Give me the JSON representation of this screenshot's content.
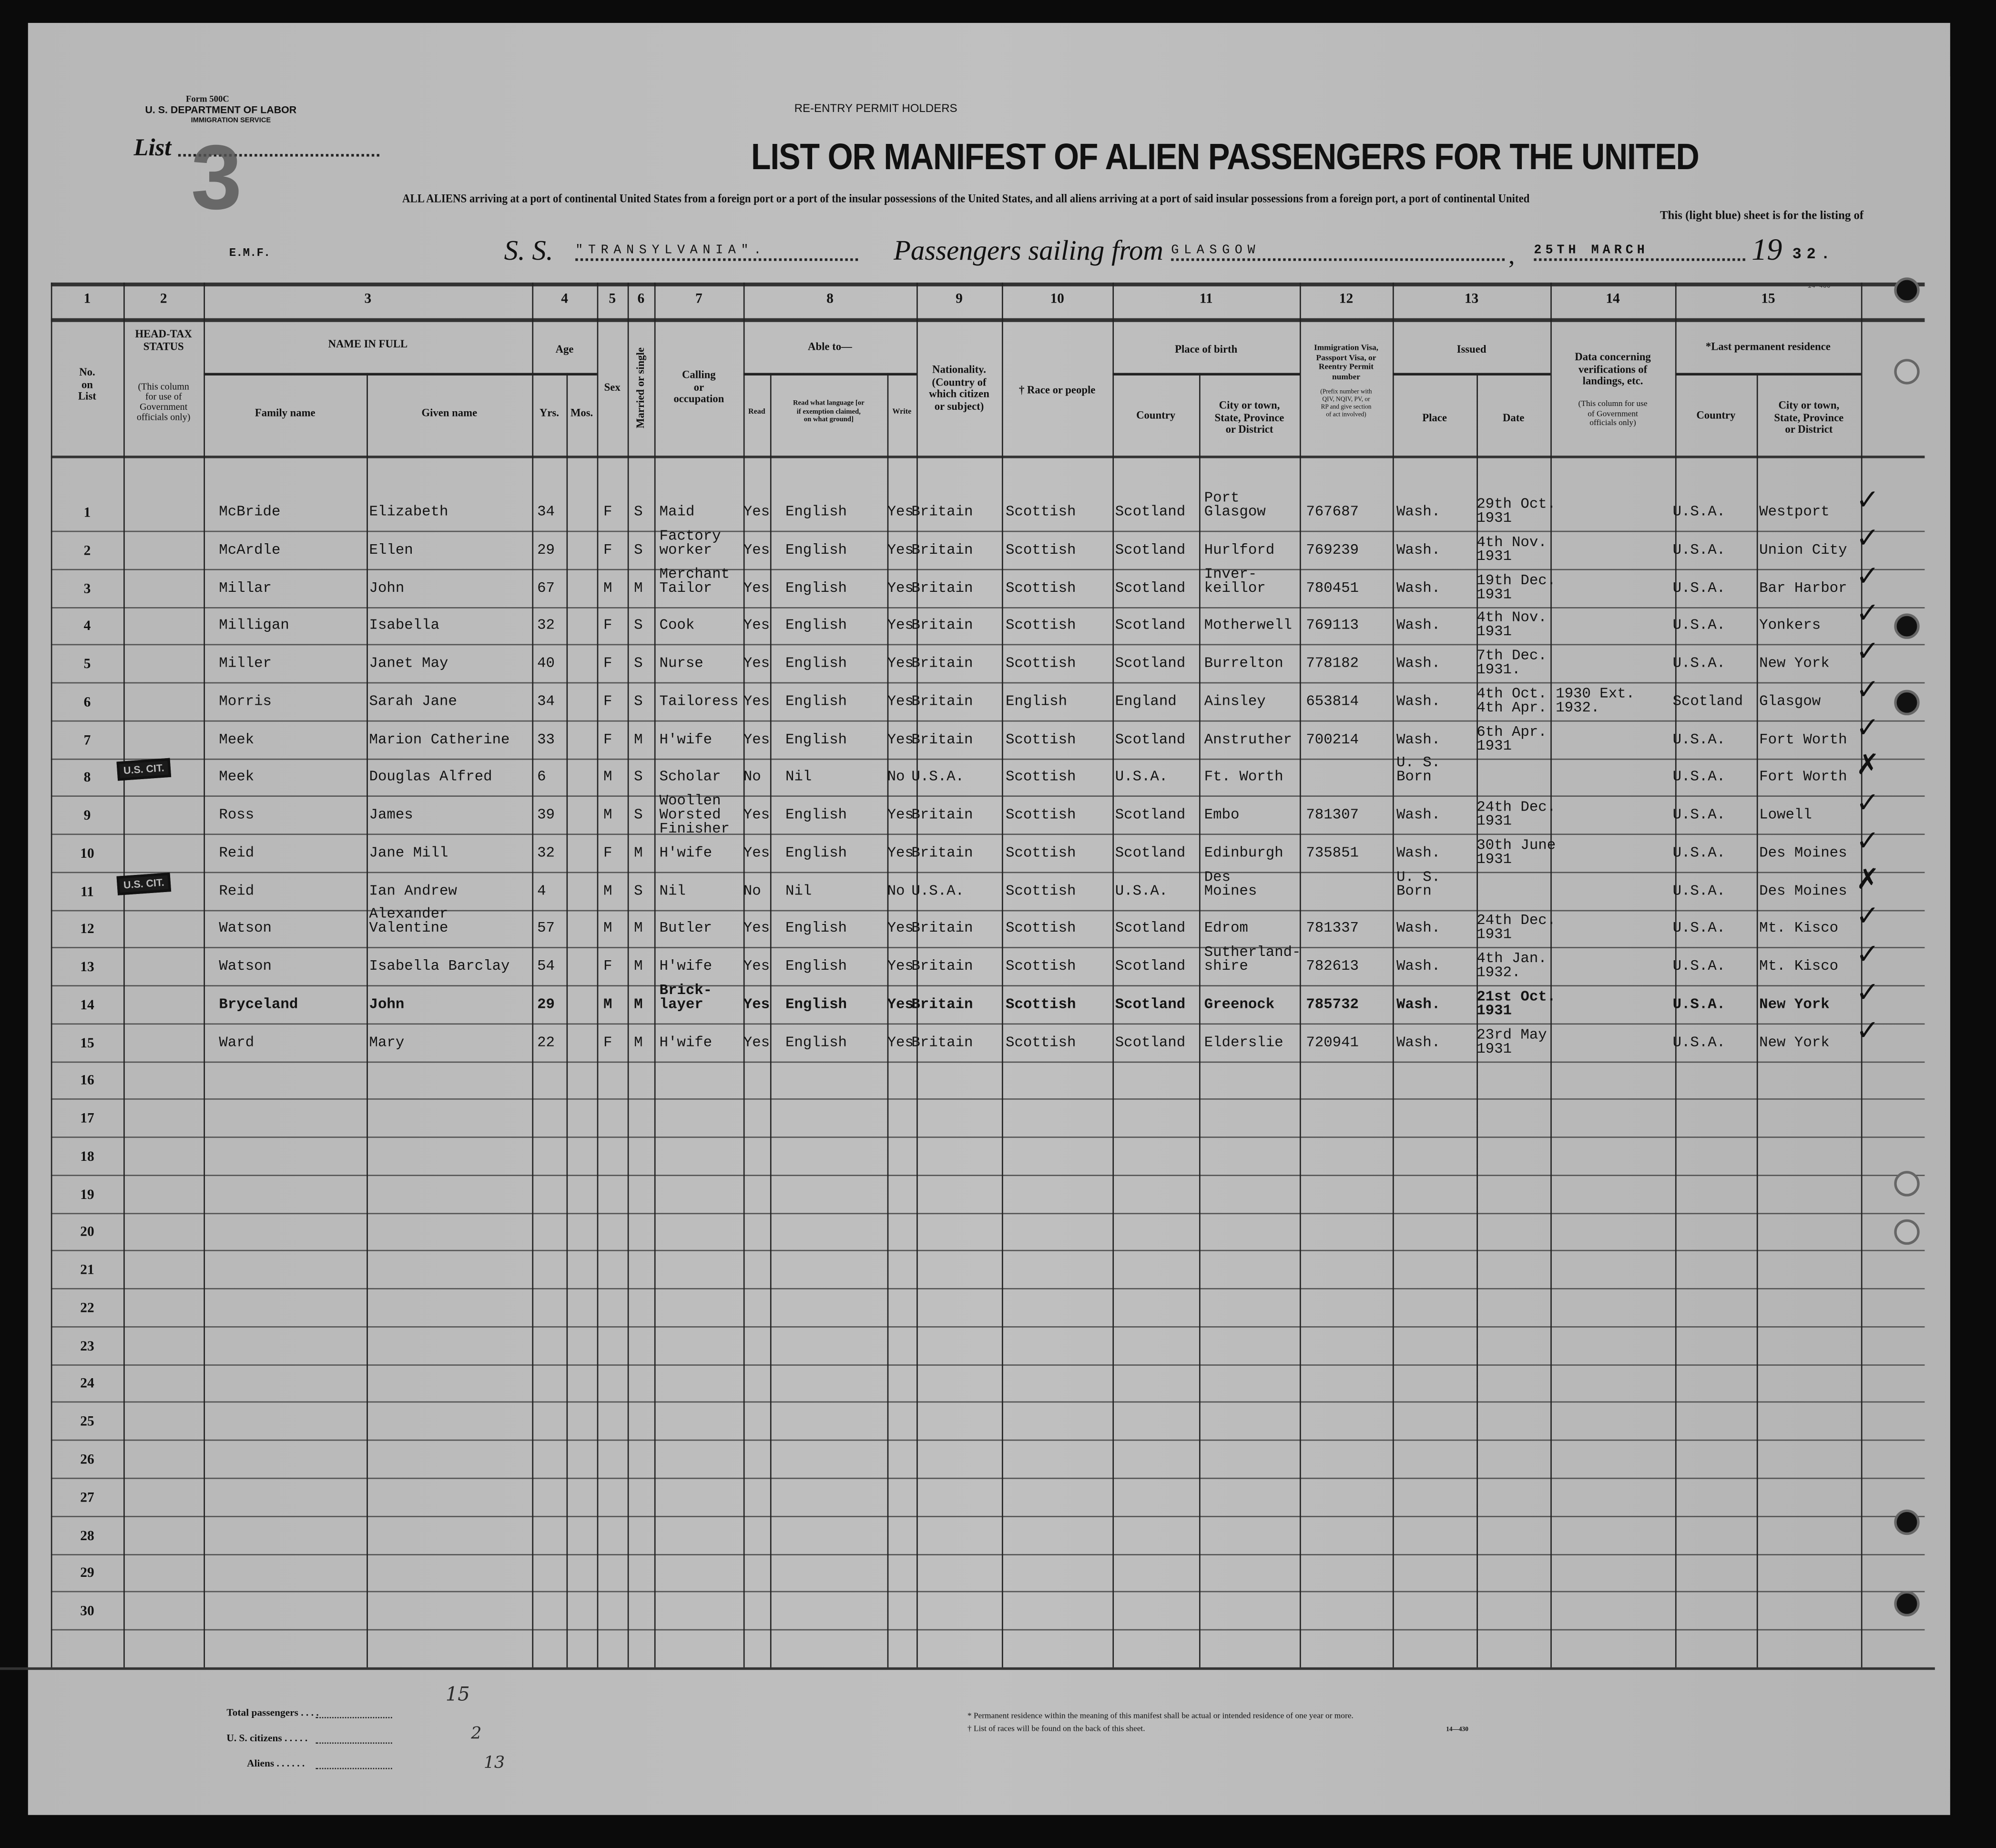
{
  "form": {
    "form_number": "Form 500C",
    "department": "U. S. DEPARTMENT OF LABOR",
    "service": "IMMIGRATION SERVICE",
    "list_label": "List",
    "list_number": "3",
    "reentry_heading": "RE-ENTRY PERMIT HOLDERS",
    "title": "LIST OR MANIFEST OF ALIEN PASSENGERS FOR THE UNITED",
    "subtitle_line1": "ALL ALIENS arriving at a port of continental United States from a foreign port or a port of the insular possessions of the United States, and all aliens arriving at a port of said insular possessions from a foreign port, a port of continental United",
    "subtitle_line2": "This (light blue) sheet is for the listing of",
    "emf": "E.M.F.",
    "ss_label": "S. S.",
    "ship_name": "\"TRANSYLVANIA\".",
    "sailing_label": "Passengers sailing from",
    "port": "GLASGOW",
    "date": "25TH MARCH",
    "year_prefix": "19",
    "year_suffix": "32.",
    "form_code": "14-430"
  },
  "column_numbers": [
    "1",
    "2",
    "3",
    "4",
    "5",
    "6",
    "7",
    "8",
    "9",
    "10",
    "11",
    "12",
    "13",
    "14",
    "15"
  ],
  "headers": {
    "no_on_list": "No.\non\nList",
    "head_tax": "HEAD-TAX\nSTATUS",
    "head_tax_note": "(This column\nfor use of\nGovernment\nofficials only)",
    "name_in_full": "NAME IN FULL",
    "family_name": "Family name",
    "given_name": "Given name",
    "age": "Age",
    "yrs": "Yrs.",
    "mos": "Mos.",
    "sex": "Sex",
    "married": "Married or single",
    "calling": "Calling\nor\noccupation",
    "able_to": "Able to—",
    "read": "Read",
    "read_language": "Read what language [or\nif exemption claimed,\non what ground]",
    "write": "Write",
    "nationality": "Nationality.\n(Country of\nwhich citizen\nor subject)",
    "race": "† Race or people",
    "place_of_birth": "Place of birth",
    "birth_country": "Country",
    "birth_city": "City or town,\nState, Province\nor District",
    "visa": "Immigration Visa,\nPassport Visa, or\nReentry Permit\nnumber",
    "visa_note": "(Prefix number with\nQIV, NQIV, PV, or\nRP and give section\nof act involved)",
    "issued": "Issued",
    "issued_place": "Place",
    "issued_date": "Date",
    "verification": "Data concerning\nverifications of\nlandings, etc.",
    "verification_note": "(This column for use\nof Government\nofficials only)",
    "last_residence": "*Last permanent residence",
    "res_country": "Country",
    "res_city": "City or town,\nState, Province\nor District"
  },
  "line_numbers": [
    "1",
    "2",
    "3",
    "4",
    "5",
    "6",
    "7",
    "8",
    "9",
    "10",
    "11",
    "12",
    "13",
    "14",
    "15",
    "16",
    "17",
    "18",
    "19",
    "20",
    "21",
    "22",
    "23",
    "24",
    "25",
    "26",
    "27",
    "28",
    "29",
    "30"
  ],
  "passengers": [
    {
      "family": "McBride",
      "given": "Elizabeth",
      "yrs": "34",
      "sex": "F",
      "marital": "S",
      "calling": "Maid",
      "read": "Yes",
      "language": "English",
      "write": "Yes",
      "nationality": "Britain",
      "race": "Scottish",
      "birth_country": "Scotland",
      "birth_city": "Port\nGlasgow",
      "visa": "767687",
      "issued_place": "Wash.",
      "issued_date": "29th Oct.\n1931",
      "res_country": "U.S.A.",
      "res_city": "Westport"
    },
    {
      "family": "McArdle",
      "given": "Ellen",
      "yrs": "29",
      "sex": "F",
      "marital": "S",
      "calling": "Factory\nworker",
      "read": "Yes",
      "language": "English",
      "write": "Yes",
      "nationality": "Britain",
      "race": "Scottish",
      "birth_country": "Scotland",
      "birth_city": "Hurlford",
      "visa": "769239",
      "issued_place": "Wash.",
      "issued_date": "4th Nov.\n1931",
      "res_country": "U.S.A.",
      "res_city": "Union City"
    },
    {
      "family": "Millar",
      "given": "John",
      "yrs": "67",
      "sex": "M",
      "marital": "M",
      "calling": "Merchant\nTailor",
      "read": "Yes",
      "language": "English",
      "write": "Yes",
      "nationality": "Britain",
      "race": "Scottish",
      "birth_country": "Scotland",
      "birth_city": "Inver-\nkeillor",
      "visa": "780451",
      "issued_place": "Wash.",
      "issued_date": "19th Dec.\n1931",
      "res_country": "U.S.A.",
      "res_city": "Bar Harbor"
    },
    {
      "family": "Milligan",
      "given": "Isabella",
      "yrs": "32",
      "sex": "F",
      "marital": "S",
      "calling": "Cook",
      "read": "Yes",
      "language": "English",
      "write": "Yes",
      "nationality": "Britain",
      "race": "Scottish",
      "birth_country": "Scotland",
      "birth_city": "Motherwell",
      "visa": "769113",
      "issued_place": "Wash.",
      "issued_date": "4th Nov.\n1931",
      "res_country": "U.S.A.",
      "res_city": "Yonkers"
    },
    {
      "family": "Miller",
      "given": "Janet May",
      "yrs": "40",
      "sex": "F",
      "marital": "S",
      "calling": "Nurse",
      "read": "Yes",
      "language": "English",
      "write": "Yes",
      "nationality": "Britain",
      "race": "Scottish",
      "birth_country": "Scotland",
      "birth_city": "Burrelton",
      "visa": "778182",
      "issued_place": "Wash.",
      "issued_date": "7th Dec.\n1931.",
      "res_country": "U.S.A.",
      "res_city": "New York"
    },
    {
      "family": "Morris",
      "given": "Sarah Jane",
      "yrs": "34",
      "sex": "F",
      "marital": "S",
      "calling": "Tailoress",
      "read": "Yes",
      "language": "English",
      "write": "Yes",
      "nationality": "Britain",
      "race": "English",
      "birth_country": "England",
      "birth_city": "Ainsley",
      "visa": "653814",
      "issued_place": "Wash.",
      "issued_date": "4th Oct.\n1930 Ext.\n4th Apr.\n1932.",
      "res_country": "Scotland",
      "res_city": "Glasgow"
    },
    {
      "family": "Meek",
      "given": "Marion Catherine",
      "yrs": "33",
      "sex": "F",
      "marital": "M",
      "calling": "H'wife",
      "read": "Yes",
      "language": "English",
      "write": "Yes",
      "nationality": "Britain",
      "race": "Scottish",
      "birth_country": "Scotland",
      "birth_city": "Anstruther",
      "visa": "700214",
      "issued_place": "Wash.",
      "issued_date": "6th Apr.\n1931",
      "res_country": "U.S.A.",
      "res_city": "Fort Worth"
    },
    {
      "family": "Meek",
      "given": "Douglas Alfred",
      "yrs": "6",
      "sex": "M",
      "marital": "S",
      "calling": "Scholar",
      "read": "No",
      "language": "Nil",
      "write": "No",
      "nationality": "U.S.A.",
      "race": "Scottish",
      "birth_country": "U.S.A.",
      "birth_city": "Ft. Worth",
      "visa": "",
      "issued_place": "U. S.\nBorn",
      "issued_date": "",
      "res_country": "U.S.A.",
      "res_city": "Fort Worth",
      "stamp": "U.S. CIT."
    },
    {
      "family": "Ross",
      "given": "James",
      "yrs": "39",
      "sex": "M",
      "marital": "S",
      "calling": "Woollen\nWorsted\nFinisher",
      "read": "Yes",
      "language": "English",
      "write": "Yes",
      "nationality": "Britain",
      "race": "Scottish",
      "birth_country": "Scotland",
      "birth_city": "Embo",
      "visa": "781307",
      "issued_place": "Wash.",
      "issued_date": "24th Dec.\n1931",
      "res_country": "U.S.A.",
      "res_city": "Lowell"
    },
    {
      "family": "Reid",
      "given": "Jane Mill",
      "yrs": "32",
      "sex": "F",
      "marital": "M",
      "calling": "H'wife",
      "read": "Yes",
      "language": "English",
      "write": "Yes",
      "nationality": "Britain",
      "race": "Scottish",
      "birth_country": "Scotland",
      "birth_city": "Edinburgh",
      "visa": "735851",
      "issued_place": "Wash.",
      "issued_date": "30th June\n1931",
      "res_country": "U.S.A.",
      "res_city": "Des Moines"
    },
    {
      "family": "Reid",
      "given": "Ian Andrew",
      "yrs": "4",
      "sex": "M",
      "marital": "S",
      "calling": "Nil",
      "read": "No",
      "language": "Nil",
      "write": "No",
      "nationality": "U.S.A.",
      "race": "Scottish",
      "birth_country": "U.S.A.",
      "birth_city": "Des\nMoines",
      "visa": "",
      "issued_place": "U. S.\nBorn",
      "issued_date": "",
      "res_country": "U.S.A.",
      "res_city": "Des Moines",
      "stamp": "U.S. CIT."
    },
    {
      "family": "Watson",
      "given": "Alexander\nValentine",
      "yrs": "57",
      "sex": "M",
      "marital": "M",
      "calling": "Butler",
      "read": "Yes",
      "language": "English",
      "write": "Yes",
      "nationality": "Britain",
      "race": "Scottish",
      "birth_country": "Scotland",
      "birth_city": "Edrom",
      "visa": "781337",
      "issued_place": "Wash.",
      "issued_date": "24th Dec.\n1931",
      "res_country": "U.S.A.",
      "res_city": "Mt. Kisco"
    },
    {
      "family": "Watson",
      "given": "Isabella Barclay",
      "yrs": "54",
      "sex": "F",
      "marital": "M",
      "calling": "H'wife",
      "read": "Yes",
      "language": "English",
      "write": "Yes",
      "nationality": "Britain",
      "race": "Scottish",
      "birth_country": "Scotland",
      "birth_city": "Sutherland-\nshire",
      "visa": "782613",
      "issued_place": "Wash.",
      "issued_date": "4th Jan.\n1932.",
      "res_country": "U.S.A.",
      "res_city": "Mt. Kisco"
    },
    {
      "family": "Bryceland",
      "given": "John",
      "yrs": "29",
      "sex": "M",
      "marital": "M",
      "calling": "Brick-\nlayer",
      "read": "Yes",
      "language": "English",
      "write": "Yes",
      "nationality": "Britain",
      "race": "Scottish",
      "birth_country": "Scotland",
      "birth_city": "Greenock",
      "visa": "785732",
      "issued_place": "Wash.",
      "issued_date": "21st Oct.\n1931",
      "res_country": "U.S.A.",
      "res_city": "New York"
    },
    {
      "family": "Ward",
      "given": "Mary",
      "yrs": "22",
      "sex": "F",
      "marital": "M",
      "calling": "H'wife",
      "read": "Yes",
      "language": "English",
      "write": "Yes",
      "nationality": "Britain",
      "race": "Scottish",
      "birth_country": "Scotland",
      "birth_city": "Elderslie",
      "visa": "720941",
      "issued_place": "Wash.",
      "issued_date": "23rd May\n1931",
      "res_country": "U.S.A.",
      "res_city": "New York"
    }
  ],
  "footer": {
    "total_passengers_label": "Total passengers . . . .",
    "total_passengers_value": "15",
    "us_citizens_label": "U. S. citizens . . . . .",
    "us_citizens_value": "2",
    "aliens_label": "Aliens . . . . . .",
    "aliens_value": "13",
    "note_residence": "* Permanent residence within the meaning of this manifest shall be actual or intended residence of one year or more.",
    "note_races": "† List of races will be found on the back of this sheet.",
    "form_code": "14—430"
  }
}
